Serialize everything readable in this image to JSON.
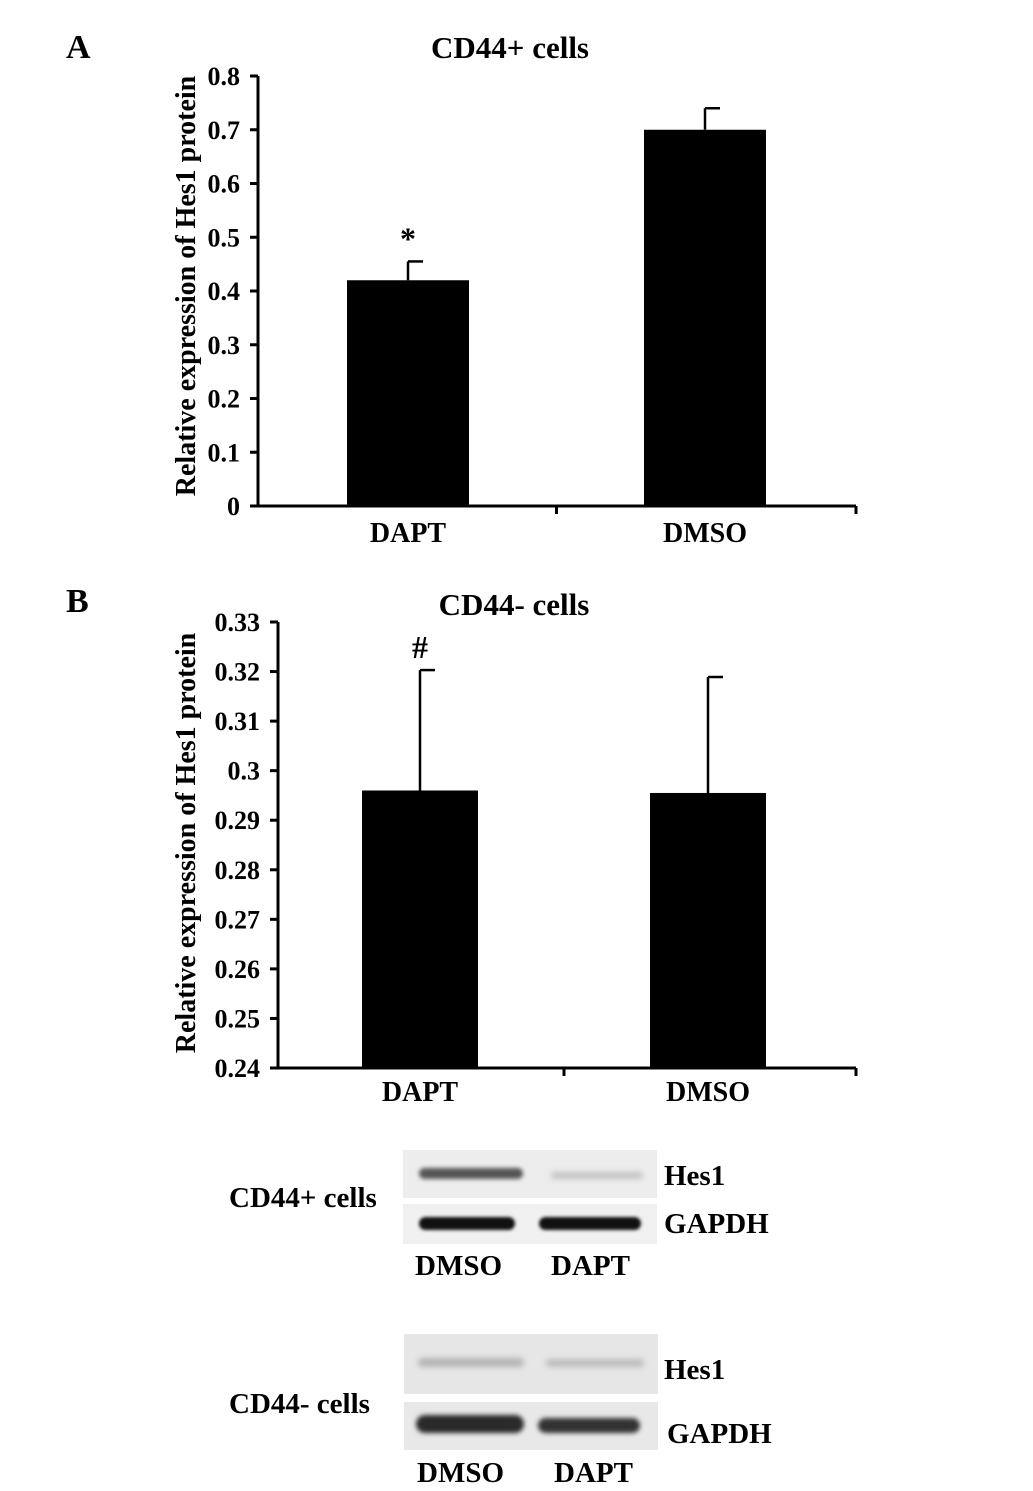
{
  "chart_data": [
    {
      "type": "bar",
      "panel_label": "A",
      "title": "CD44+ cells",
      "ylabel": "Relative expression of Hes1 protein",
      "categories": [
        "DAPT",
        "DMSO"
      ],
      "values": [
        0.42,
        0.7
      ],
      "errors": [
        0.035,
        0.04
      ],
      "annotations": [
        "*",
        ""
      ],
      "ylim": [
        0,
        0.8
      ],
      "yticks": [
        "0",
        "0.1",
        "0.2",
        "0.3",
        "0.4",
        "0.5",
        "0.6",
        "0.7",
        "0.8"
      ],
      "grid": false,
      "legend": "none"
    },
    {
      "type": "bar",
      "panel_label": "B",
      "title": "CD44- cells",
      "ylabel": "Relative expression of Hes1 protein",
      "categories": [
        "DAPT",
        "DMSO"
      ],
      "values": [
        0.296,
        0.2955
      ],
      "errors": [
        0.0243,
        0.0234
      ],
      "annotations": [
        "#",
        ""
      ],
      "ylim": [
        0.24,
        0.33
      ],
      "yticks": [
        "0.24",
        "0.25",
        "0.26",
        "0.27",
        "0.28",
        "0.29",
        "0.3",
        "0.31",
        "0.32",
        "0.33"
      ],
      "grid": false,
      "legend": "none"
    }
  ],
  "blots": [
    {
      "group_label": "CD44+ cells",
      "bands": [
        "Hes1",
        "GAPDH"
      ],
      "lanes": [
        "DMSO",
        "DAPT"
      ]
    },
    {
      "group_label": "CD44- cells",
      "bands": [
        "Hes1",
        "GAPDH"
      ],
      "lanes": [
        "DMSO",
        "DAPT"
      ]
    }
  ]
}
